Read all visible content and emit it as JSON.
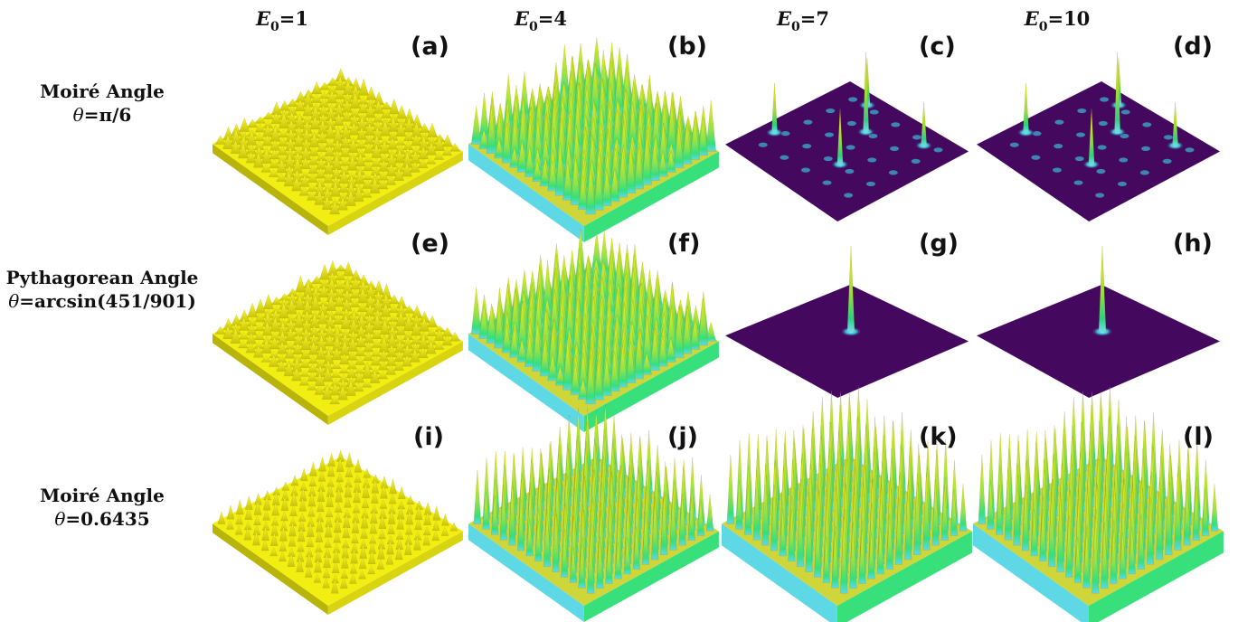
{
  "column_headers": [
    {
      "sym": "E",
      "sub": "0",
      "val": "=1"
    },
    {
      "sym": "E",
      "sub": "0",
      "val": "=4"
    },
    {
      "sym": "E",
      "sub": "0",
      "val": "=7"
    },
    {
      "sym": "E",
      "sub": "0",
      "val": "=10"
    }
  ],
  "row_labels": [
    {
      "line1": "Moiré Angle",
      "theta": "θ",
      "rest": "=π/6"
    },
    {
      "line1": "Pythagorean Angle",
      "theta": "θ",
      "rest": "=arcsin(451/901)"
    },
    {
      "line1": "Moiré Angle",
      "theta": "θ",
      "rest": "=0.6435"
    }
  ],
  "panels": [
    {
      "label": "(a)",
      "style": "rough-yellow"
    },
    {
      "label": "(b)",
      "style": "spiky-green"
    },
    {
      "label": "(c)",
      "style": "flat-peaks",
      "peaks": 5
    },
    {
      "label": "(d)",
      "style": "flat-peaks",
      "peaks": 5
    },
    {
      "label": "(e)",
      "style": "rough-yellow"
    },
    {
      "label": "(f)",
      "style": "spiky-green"
    },
    {
      "label": "(g)",
      "style": "flat-peaks",
      "peaks": 1
    },
    {
      "label": "(h)",
      "style": "flat-peaks",
      "peaks": 1
    },
    {
      "label": "(i)",
      "style": "regular-yellow"
    },
    {
      "label": "(j)",
      "style": "regular-spiky"
    },
    {
      "label": "(k)",
      "style": "regular-tall"
    },
    {
      "label": "(l)",
      "style": "regular-tall"
    }
  ],
  "colors": {
    "yellow": "#f2ee12",
    "yellow_dark": "#b8b40a",
    "green": "#37e07a",
    "cyan": "#5fd8e6",
    "purple_floor": "#45085f",
    "text": "#111111"
  }
}
